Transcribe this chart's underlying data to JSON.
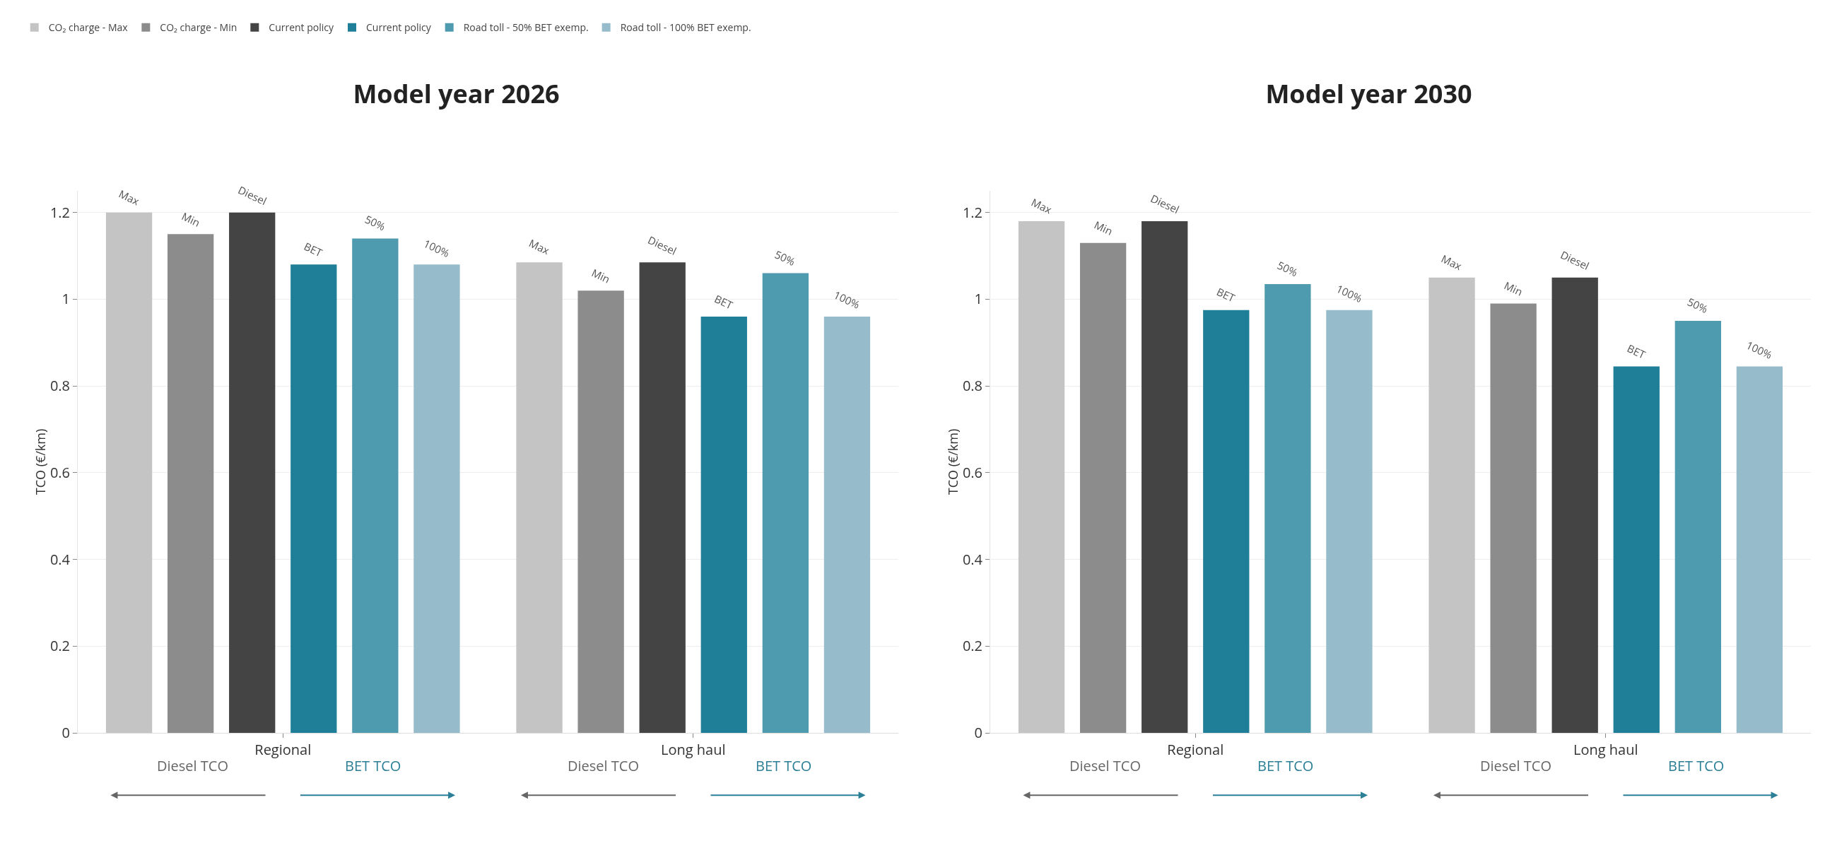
{
  "chart_data": [
    {
      "type": "bar",
      "title": "Model year 2026",
      "ylabel": "TCO (€/km)",
      "categories": [
        "Regional",
        "Long haul"
      ],
      "ylim": [
        0,
        1.25
      ],
      "yticks": [
        0.0,
        0.2,
        0.4,
        0.6,
        0.8,
        1.0,
        1.2
      ],
      "grid": "y",
      "legend": "top",
      "series": [
        {
          "name": "CO₂ charge - Max",
          "color": "#c4c4c4",
          "values": [
            1.2,
            1.085
          ]
        },
        {
          "name": "CO₂ charge - Min",
          "color": "#8c8c8c",
          "values": [
            1.15,
            1.02
          ]
        },
        {
          "name": "Current policy",
          "color": "#444444",
          "values": [
            1.2,
            1.085
          ]
        },
        {
          "name": "Current policy",
          "color": "#1f7f99",
          "values": [
            1.08,
            0.96
          ]
        },
        {
          "name": "Road toll - 50% BET exemp.",
          "color": "#4e9bb0",
          "values": [
            1.14,
            1.06
          ]
        },
        {
          "name": "Road toll - 100% BET exemp.",
          "color": "#96bccb",
          "values": [
            1.08,
            0.96
          ]
        }
      ],
      "annotations": [
        "Max",
        "Min",
        "Diesel",
        "BET",
        "50%",
        "100%",
        "Max",
        "Min",
        "Diesel",
        "BET",
        "50%",
        "100%",
        "Diesel TCO",
        "BET TCO",
        "Diesel TCO",
        "BET TCO"
      ]
    },
    {
      "type": "bar",
      "title": "Model year 2030",
      "ylabel": "TCO (€/km)",
      "categories": [
        "Regional",
        "Long haul"
      ],
      "ylim": [
        0,
        1.25
      ],
      "yticks": [
        0.0,
        0.2,
        0.4,
        0.6,
        0.8,
        1.0,
        1.2
      ],
      "grid": "y",
      "series": [
        {
          "color": "#c4c4c4",
          "values": [
            1.18,
            1.05
          ]
        },
        {
          "color": "#8c8c8c",
          "values": [
            1.13,
            0.99
          ]
        },
        {
          "color": "#444444",
          "values": [
            1.18,
            1.05
          ]
        },
        {
          "color": "#1f7f99",
          "values": [
            0.975,
            0.845
          ]
        },
        {
          "color": "#4e9bb0",
          "values": [
            1.035,
            0.95
          ]
        },
        {
          "color": "#96bccb",
          "values": [
            0.975,
            0.845
          ]
        }
      ],
      "annotations": [
        "Max",
        "Min",
        "Diesel",
        "BET",
        "50%",
        "100%",
        "Max",
        "Min",
        "Diesel",
        "BET",
        "50%",
        "100%",
        "Diesel TCO",
        "BET TCO",
        "Diesel TCO",
        "BET TCO"
      ]
    }
  ]
}
